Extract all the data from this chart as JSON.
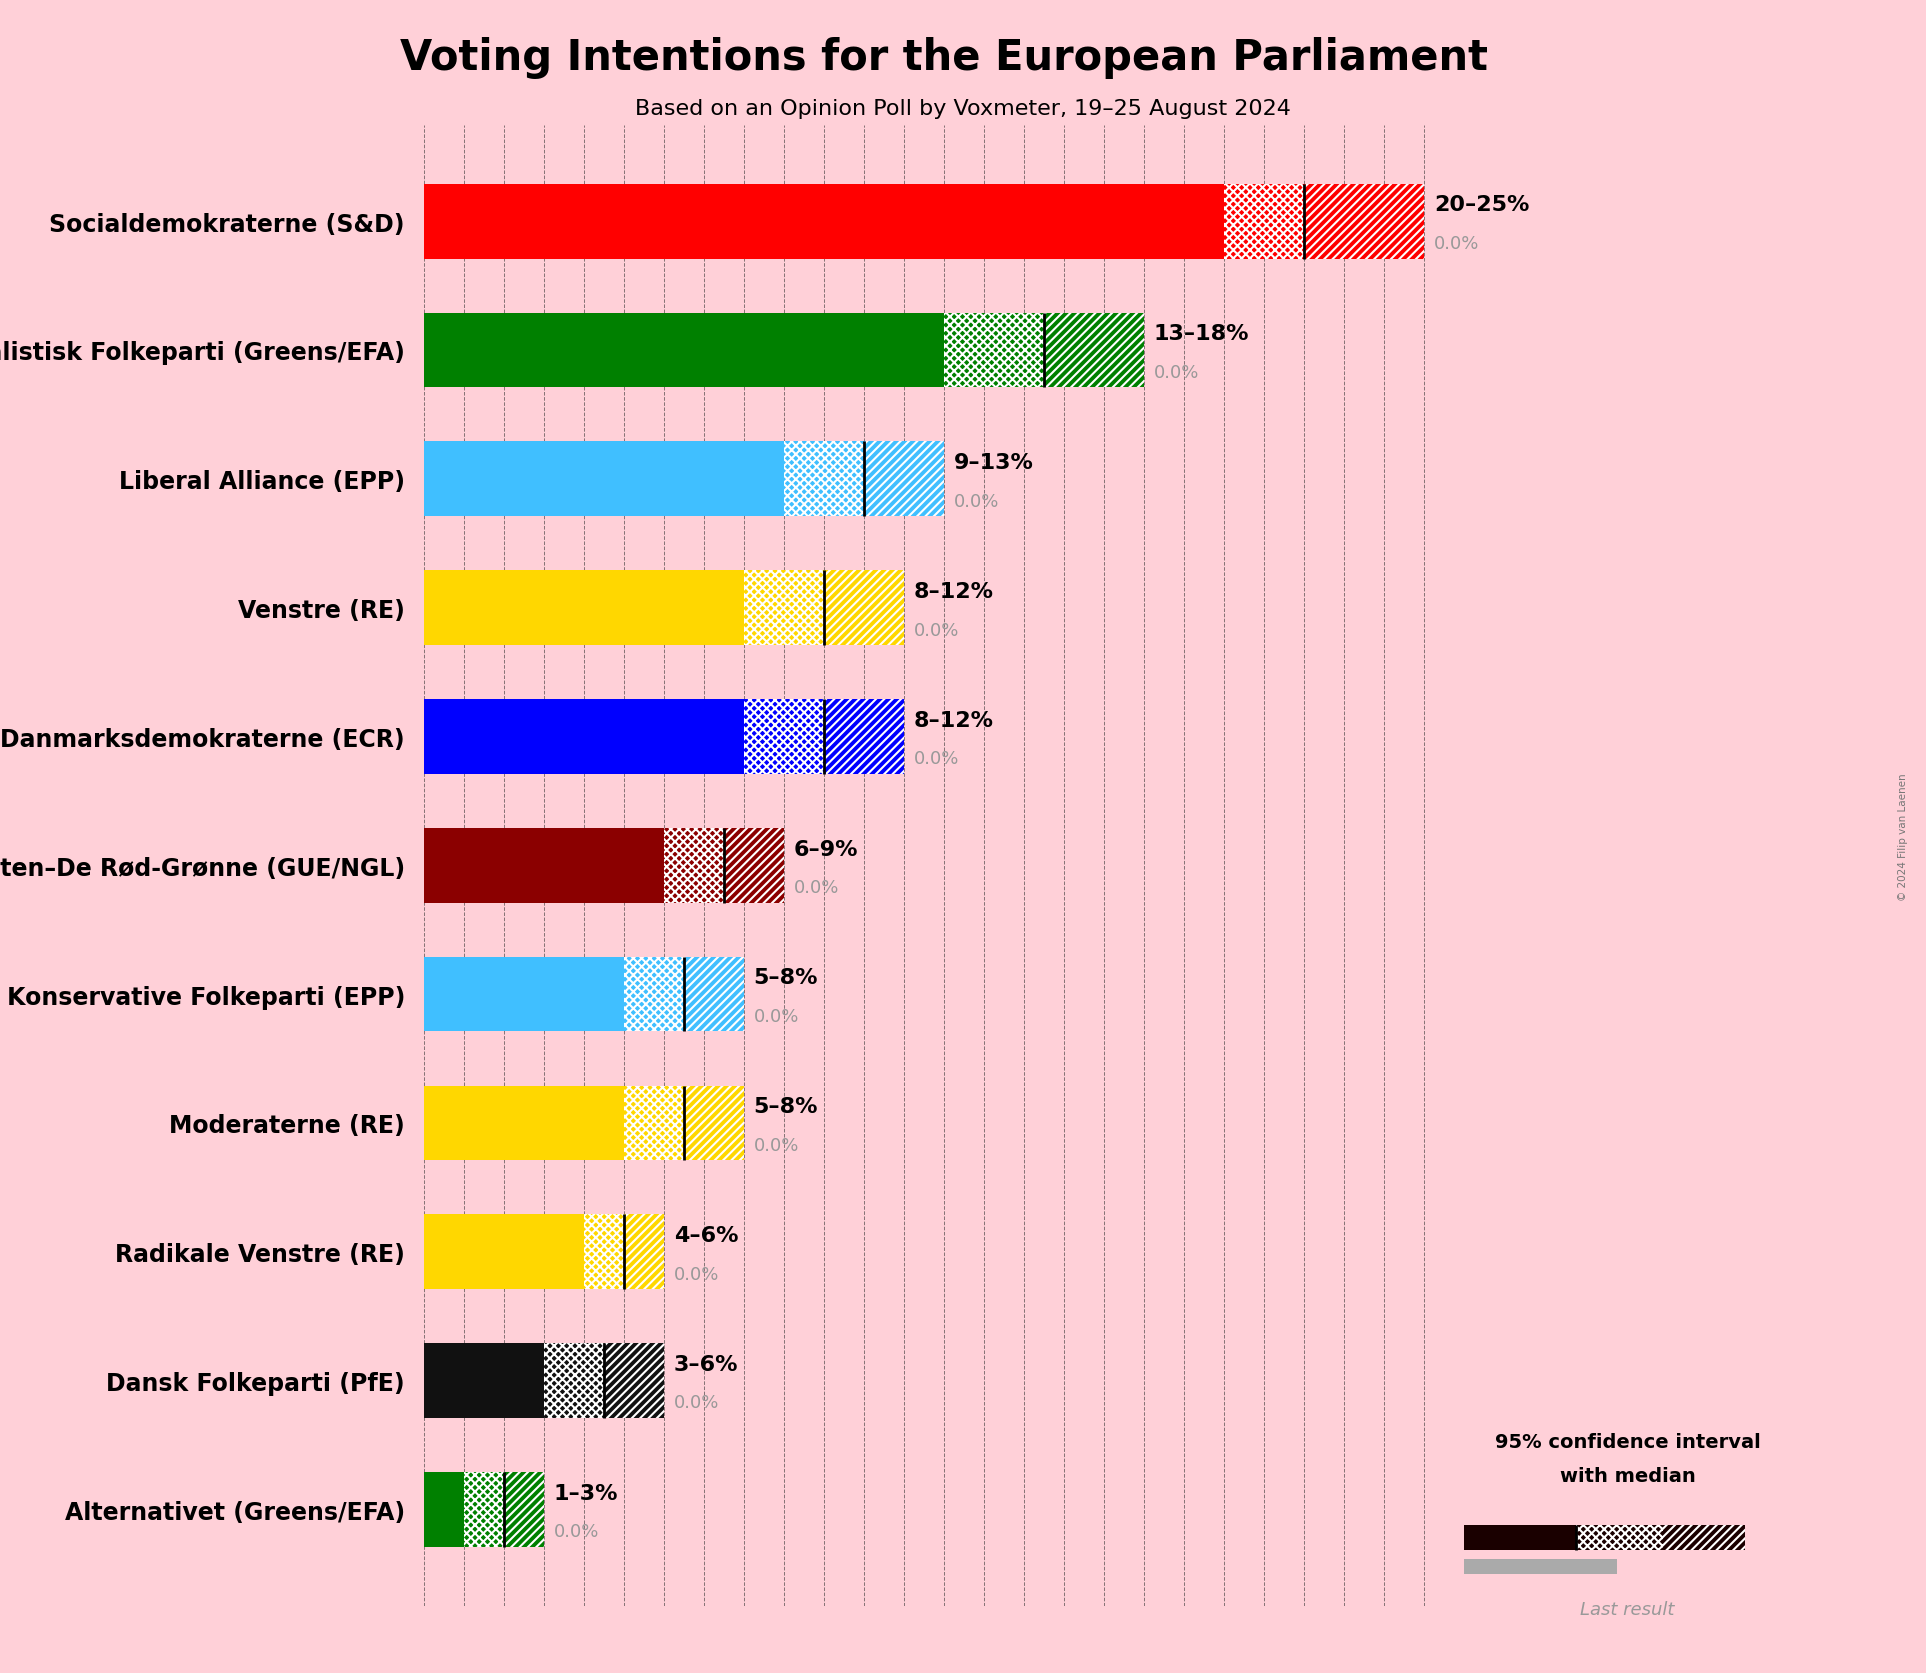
{
  "title": "Voting Intentions for the European Parliament",
  "subtitle": "Based on an Opinion Poll by Voxmeter, 19–25 August 2024",
  "copyright": "© 2024 Filip van Laenen",
  "background_color": "#FFD0D8",
  "parties": [
    {
      "name": "Socialdemokraterne (S&D)",
      "color": "#FF0000",
      "low": 20,
      "median": 22,
      "high": 25,
      "last_result": 0.0,
      "label": "20–25%"
    },
    {
      "name": "Socialistisk Folkeparti (Greens/EFA)",
      "color": "#008000",
      "low": 13,
      "median": 15.5,
      "high": 18,
      "last_result": 0.0,
      "label": "13–18%"
    },
    {
      "name": "Liberal Alliance (EPP)",
      "color": "#40BFFF",
      "low": 9,
      "median": 11,
      "high": 13,
      "last_result": 0.0,
      "label": "9–13%"
    },
    {
      "name": "Venstre (RE)",
      "color": "#FFD700",
      "low": 8,
      "median": 10,
      "high": 12,
      "last_result": 0.0,
      "label": "8–12%"
    },
    {
      "name": "Danmarksdemokraterne (ECR)",
      "color": "#0000FF",
      "low": 8,
      "median": 10,
      "high": 12,
      "last_result": 0.0,
      "label": "8–12%"
    },
    {
      "name": "Enhedslisten–De Rød-Grønne (GUE/NGL)",
      "color": "#8B0000",
      "low": 6,
      "median": 7.5,
      "high": 9,
      "last_result": 0.0,
      "label": "6–9%"
    },
    {
      "name": "Det Konservative Folkeparti (EPP)",
      "color": "#40BFFF",
      "low": 5,
      "median": 6.5,
      "high": 8,
      "last_result": 0.0,
      "label": "5–8%"
    },
    {
      "name": "Moderaterne (RE)",
      "color": "#FFD700",
      "low": 5,
      "median": 6.5,
      "high": 8,
      "last_result": 0.0,
      "label": "5–8%"
    },
    {
      "name": "Radikale Venstre (RE)",
      "color": "#FFD700",
      "low": 4,
      "median": 5,
      "high": 6,
      "last_result": 0.0,
      "label": "4–6%"
    },
    {
      "name": "Dansk Folkeparti (PfE)",
      "color": "#111111",
      "low": 3,
      "median": 4.5,
      "high": 6,
      "last_result": 0.0,
      "label": "3–6%"
    },
    {
      "name": "Alternativet (Greens/EFA)",
      "color": "#008000",
      "low": 1,
      "median": 2,
      "high": 3,
      "last_result": 0.0,
      "label": "1–3%"
    }
  ],
  "xlim_max": 26,
  "bar_height": 0.58,
  "label_fontsize": 17,
  "range_fontsize": 16,
  "last_result_fontsize": 13,
  "title_fontsize": 30,
  "subtitle_fontsize": 16,
  "legend_bar_color": "#1a0000"
}
